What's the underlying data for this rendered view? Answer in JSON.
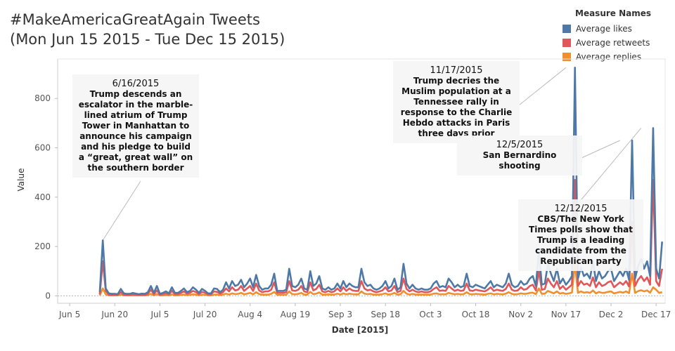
{
  "title_line1": "#MakeAmericaGreatAgain Tweets",
  "title_line2": "(Mon Jun 15 2015 - Tue Dec 15 2015)",
  "legend": {
    "title": "Measure Names",
    "items": [
      {
        "label": "Average likes",
        "color": "#4e79a7"
      },
      {
        "label": "Average retweets",
        "color": "#e15759"
      },
      {
        "label": "Average replies",
        "color": "#f28e2b"
      }
    ]
  },
  "annotations": [
    {
      "date": "6/16/2015",
      "text": "Trump descends an escalator in the marble-lined atrium of Trump Tower in Manhattan to announce his campaign and his pledge to build a “great, great wall” on the southern border"
    },
    {
      "date": "11/17/2015",
      "text": "Trump decries the Muslim population at a Tennessee rally in response to the Charlie Hebdo attacks in Paris three days prior"
    },
    {
      "date": "12/5/2015",
      "text": "San Bernardino shooting"
    },
    {
      "date": "12/12/2015",
      "text": "CBS/The New York Times polls show that Trump is a leading candidate from the Republican party"
    }
  ],
  "chart_data": {
    "type": "line",
    "xlabel": "Date [2015]",
    "ylabel": "Value",
    "ylim": [
      -30,
      960
    ],
    "yticks": [
      0,
      200,
      400,
      600,
      800
    ],
    "xticks": [
      "Jun 5",
      "Jun 20",
      "Jul 5",
      "Jul 20",
      "Aug 4",
      "Aug 19",
      "Sep 3",
      "Sep 18",
      "Oct 3",
      "Oct 18",
      "Nov 2",
      "Nov 17",
      "Dec 2",
      "Dec 17"
    ],
    "xrange": [
      "2015-06-01",
      "2015-12-20"
    ],
    "x_start": "2015-06-15",
    "series": [
      {
        "name": "Average likes",
        "color": "#4e79a7",
        "values": [
          15,
          225,
          30,
          10,
          8,
          8,
          7,
          28,
          10,
          8,
          8,
          12,
          9,
          7,
          9,
          8,
          15,
          40,
          12,
          40,
          8,
          12,
          18,
          10,
          35,
          12,
          12,
          20,
          30,
          15,
          20,
          35,
          25,
          12,
          28,
          20,
          10,
          10,
          30,
          28,
          15,
          25,
          55,
          30,
          60,
          40,
          45,
          65,
          35,
          50,
          70,
          35,
          85,
          40,
          25,
          30,
          30,
          45,
          90,
          20,
          20,
          20,
          25,
          110,
          40,
          35,
          45,
          70,
          30,
          25,
          100,
          40,
          50,
          80,
          30,
          25,
          35,
          25,
          30,
          50,
          30,
          60,
          35,
          50,
          40,
          35,
          35,
          110,
          55,
          40,
          45,
          30,
          25,
          30,
          40,
          60,
          30,
          40,
          70,
          25,
          35,
          130,
          50,
          30,
          45,
          30,
          25,
          30,
          25,
          25,
          30,
          50,
          60,
          35,
          40,
          35,
          70,
          55,
          35,
          45,
          35,
          40,
          90,
          40,
          35,
          45,
          40,
          35,
          30,
          45,
          60,
          35,
          45,
          40,
          35,
          50,
          90,
          45,
          35,
          40,
          60,
          45,
          50,
          70,
          80,
          40,
          180,
          45,
          50,
          130,
          90,
          60,
          110,
          50,
          70,
          45,
          60,
          80,
          925,
          70,
          115,
          80,
          90,
          70,
          140,
          60,
          100,
          70,
          80,
          100,
          110,
          60,
          80,
          100,
          80,
          110,
          65,
          630,
          70,
          120,
          150,
          110,
          140,
          80,
          680,
          110,
          70,
          220
        ]
      },
      {
        "name": "Average retweets",
        "color": "#e15759",
        "values": [
          6,
          140,
          20,
          5,
          4,
          4,
          4,
          15,
          5,
          4,
          4,
          6,
          5,
          4,
          5,
          4,
          8,
          25,
          7,
          22,
          5,
          7,
          10,
          6,
          20,
          7,
          7,
          12,
          18,
          9,
          12,
          20,
          15,
          7,
          16,
          12,
          6,
          6,
          18,
          16,
          9,
          15,
          30,
          18,
          35,
          22,
          25,
          40,
          20,
          30,
          40,
          20,
          50,
          22,
          15,
          18,
          18,
          25,
          55,
          12,
          12,
          12,
          15,
          60,
          22,
          20,
          25,
          40,
          18,
          15,
          55,
          22,
          28,
          45,
          18,
          15,
          20,
          15,
          18,
          30,
          18,
          35,
          20,
          30,
          22,
          20,
          20,
          60,
          30,
          22,
          25,
          18,
          15,
          18,
          22,
          35,
          18,
          22,
          40,
          15,
          20,
          70,
          28,
          18,
          25,
          18,
          15,
          18,
          15,
          15,
          18,
          28,
          35,
          20,
          22,
          20,
          40,
          30,
          20,
          25,
          20,
          22,
          50,
          22,
          20,
          25,
          22,
          20,
          18,
          25,
          35,
          20,
          25,
          22,
          20,
          28,
          50,
          25,
          20,
          22,
          35,
          25,
          28,
          40,
          45,
          22,
          100,
          25,
          28,
          70,
          50,
          35,
          60,
          28,
          40,
          25,
          35,
          45,
          470,
          40,
          60,
          45,
          50,
          40,
          75,
          35,
          55,
          40,
          45,
          55,
          60,
          35,
          45,
          55,
          45,
          60,
          38,
          300,
          40,
          65,
          80,
          60,
          75,
          45,
          470,
          60,
          40,
          110
        ]
      },
      {
        "name": "Average replies",
        "color": "#f28e2b",
        "values": [
          2,
          30,
          6,
          2,
          2,
          2,
          2,
          5,
          2,
          2,
          2,
          2,
          2,
          2,
          2,
          2,
          3,
          8,
          2,
          7,
          2,
          2,
          3,
          2,
          6,
          2,
          2,
          4,
          5,
          3,
          4,
          6,
          5,
          2,
          5,
          4,
          2,
          2,
          5,
          5,
          3,
          5,
          9,
          5,
          10,
          7,
          8,
          12,
          6,
          9,
          12,
          6,
          15,
          7,
          5,
          5,
          5,
          8,
          16,
          4,
          4,
          4,
          5,
          18,
          7,
          6,
          8,
          12,
          5,
          5,
          16,
          7,
          9,
          14,
          5,
          5,
          6,
          5,
          5,
          9,
          5,
          10,
          6,
          9,
          7,
          6,
          6,
          18,
          9,
          7,
          8,
          5,
          5,
          5,
          7,
          10,
          5,
          7,
          12,
          5,
          6,
          20,
          9,
          5,
          8,
          5,
          5,
          5,
          5,
          5,
          5,
          9,
          10,
          6,
          7,
          6,
          12,
          9,
          6,
          8,
          6,
          7,
          15,
          7,
          6,
          8,
          7,
          6,
          5,
          8,
          10,
          6,
          8,
          7,
          6,
          9,
          15,
          8,
          6,
          7,
          10,
          8,
          9,
          12,
          13,
          7,
          30,
          8,
          9,
          20,
          15,
          10,
          18,
          9,
          12,
          8,
          10,
          13,
          130,
          12,
          18,
          13,
          15,
          12,
          22,
          10,
          16,
          12,
          13,
          16,
          18,
          10,
          13,
          16,
          13,
          18,
          11,
          90,
          12,
          19,
          23,
          18,
          22,
          13,
          35,
          25,
          12,
          15
        ]
      }
    ]
  }
}
